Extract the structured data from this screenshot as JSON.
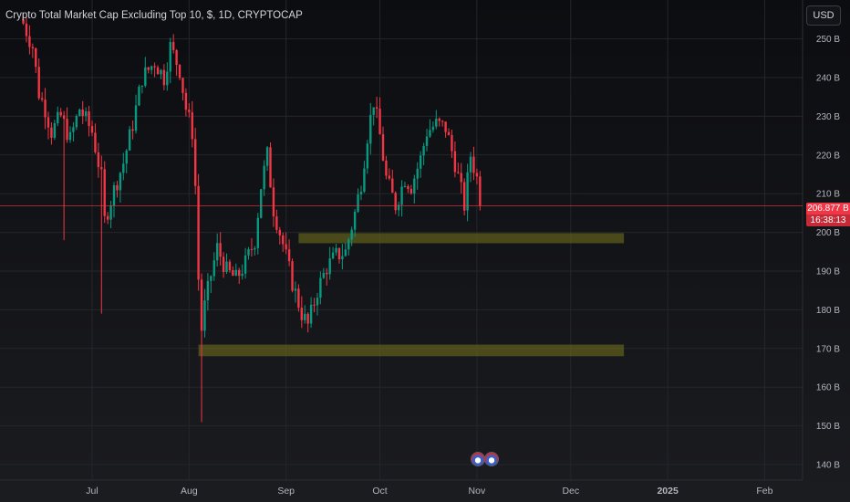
{
  "header": {
    "title": "Crypto Total Market Cap Excluding Top 10, $, 1D, CRYPTOCAP"
  },
  "toolbar": {
    "currency_button": "USD"
  },
  "price_badge": {
    "last": "206.877 B",
    "countdown": "16:38:13"
  },
  "colors": {
    "up": "#089981",
    "down": "#f23645",
    "zone": "#6b6a1c",
    "last_price_line": "#f23645"
  },
  "events": {
    "icons": [
      "us-flag-icon",
      "us-flag-icon"
    ]
  },
  "chart_data": {
    "type": "candlestick",
    "ylim": [
      137,
      258
    ],
    "y_ticks": [
      {
        "value": 140,
        "label": "140 B"
      },
      {
        "value": 150,
        "label": "150 B"
      },
      {
        "value": 160,
        "label": "160 B"
      },
      {
        "value": 170,
        "label": "170 B"
      },
      {
        "value": 180,
        "label": "180 B"
      },
      {
        "value": 190,
        "label": "190 B"
      },
      {
        "value": 200,
        "label": "200 B"
      },
      {
        "value": 210,
        "label": "210 B"
      },
      {
        "value": 220,
        "label": "220 B"
      },
      {
        "value": 230,
        "label": "230 B"
      },
      {
        "value": 240,
        "label": "240 B"
      },
      {
        "value": 250,
        "label": "250 B"
      }
    ],
    "x_ticks": [
      "Jul",
      "Aug",
      "Sep",
      "Oct",
      "Nov",
      "Dec",
      "2025",
      "Feb"
    ],
    "last_price": 206.877,
    "zones": [
      {
        "start": "Sep 5",
        "end": "Dec 18",
        "low": 197.2,
        "high": 199.8
      },
      {
        "start": "Aug 4",
        "end": "Dec 18",
        "low": 168.0,
        "high": 171.0
      }
    ],
    "waypoints": [
      [
        "Jun 9",
        254
      ],
      [
        "Jun 12",
        248
      ],
      [
        "Jun 14",
        236
      ],
      [
        "Jun 16",
        232
      ],
      [
        "Jun 18",
        226
      ],
      [
        "Jun 21",
        230
      ],
      [
        "Jun 24",
        224
      ],
      [
        "Jun 27",
        232
      ],
      [
        "Jul 1",
        226
      ],
      [
        "Jul 4",
        214
      ],
      [
        "Jul 5",
        203
      ],
      [
        "Jul 8",
        211
      ],
      [
        "Jul 11",
        218
      ],
      [
        "Jul 14",
        228
      ],
      [
        "Jul 17",
        240
      ],
      [
        "Jul 21",
        244
      ],
      [
        "Jul 24",
        240
      ],
      [
        "Jul 26",
        248
      ],
      [
        "Jul 29",
        242
      ],
      [
        "Jul 31",
        232
      ],
      [
        "Aug 2",
        226
      ],
      [
        "Aug 3",
        212
      ],
      [
        "Aug 4",
        188
      ],
      [
        "Aug 5",
        175
      ],
      [
        "Aug 6",
        181
      ],
      [
        "Aug 8",
        189
      ],
      [
        "Aug 10",
        196
      ],
      [
        "Aug 13",
        190
      ],
      [
        "Aug 16",
        188
      ],
      [
        "Aug 19",
        192
      ],
      [
        "Aug 22",
        198
      ],
      [
        "Aug 24",
        212
      ],
      [
        "Aug 26",
        220
      ],
      [
        "Aug 28",
        206
      ],
      [
        "Aug 31",
        197
      ],
      [
        "Sep 3",
        187
      ],
      [
        "Sep 6",
        179
      ],
      [
        "Sep 8",
        176
      ],
      [
        "Sep 11",
        185
      ],
      [
        "Sep 14",
        191
      ],
      [
        "Sep 17",
        194
      ],
      [
        "Sep 20",
        195
      ],
      [
        "Sep 23",
        205
      ],
      [
        "Sep 25",
        213
      ],
      [
        "Sep 27",
        225
      ],
      [
        "Sep 29",
        234
      ],
      [
        "Oct 1",
        225
      ],
      [
        "Oct 3",
        214
      ],
      [
        "Oct 6",
        207
      ],
      [
        "Oct 9",
        214
      ],
      [
        "Oct 11",
        212
      ],
      [
        "Oct 14",
        219
      ],
      [
        "Oct 16",
        226
      ],
      [
        "Oct 19",
        228
      ],
      [
        "Oct 22",
        227
      ],
      [
        "Oct 25",
        218
      ],
      [
        "Oct 28",
        207
      ],
      [
        "Oct 30",
        220
      ],
      [
        "Nov 1",
        214
      ],
      [
        "Nov 2",
        207
      ]
    ]
  }
}
